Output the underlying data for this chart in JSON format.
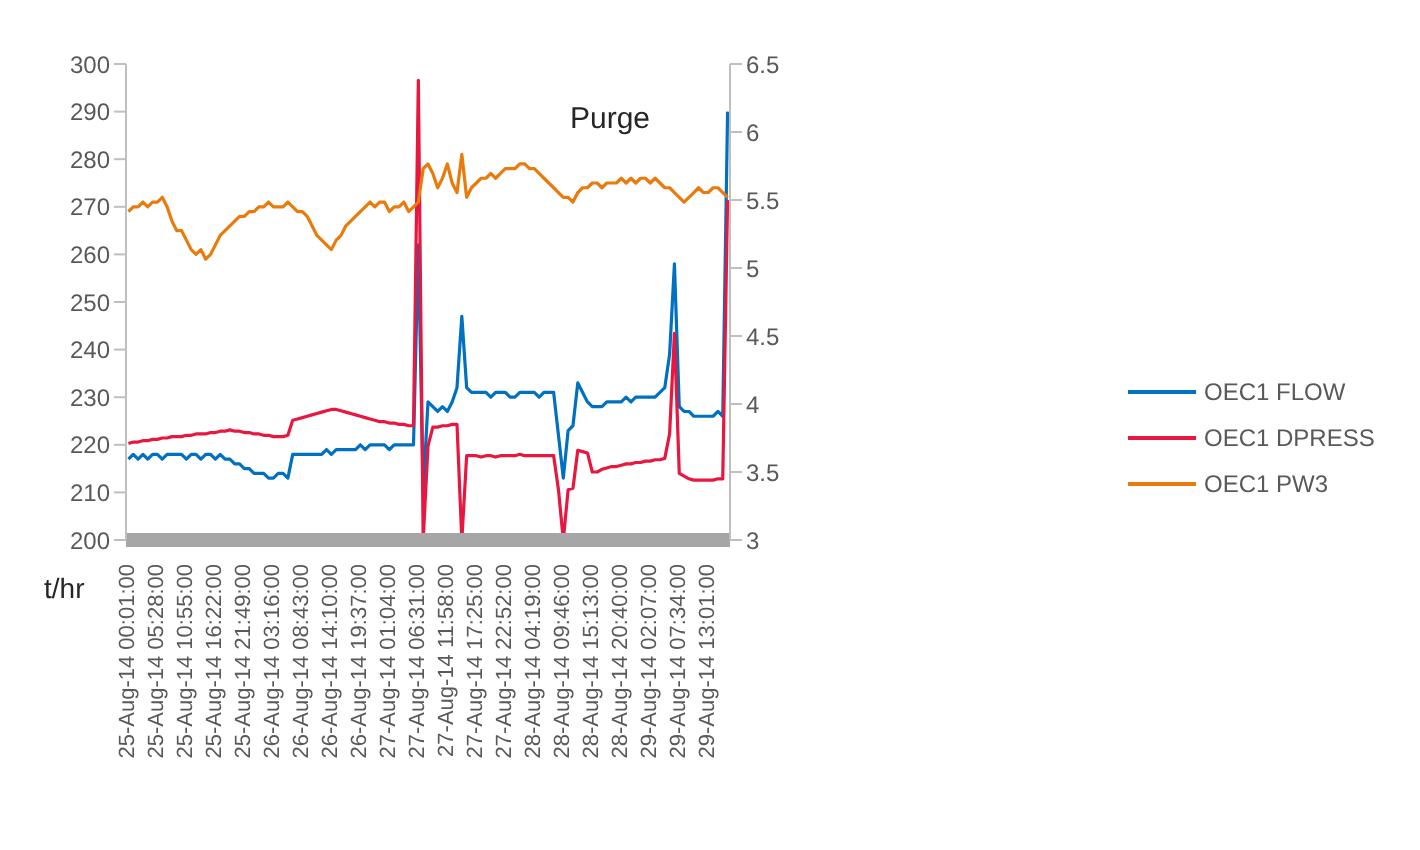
{
  "chart_data": {
    "type": "line",
    "ylabel": "t/hr",
    "annotations": [
      "Purge"
    ],
    "categories": [
      "25-Aug-14 00:01:00",
      null,
      null,
      null,
      null,
      null,
      "25-Aug-14 05:28:00",
      null,
      null,
      null,
      null,
      null,
      "25-Aug-14 10:55:00",
      null,
      null,
      null,
      null,
      null,
      "25-Aug-14 16:22:00",
      null,
      null,
      null,
      null,
      null,
      "25-Aug-14 21:49:00",
      null,
      null,
      null,
      null,
      null,
      "26-Aug-14 03:16:00",
      null,
      null,
      null,
      null,
      null,
      "26-Aug-14 08:43:00",
      null,
      null,
      null,
      null,
      null,
      "26-Aug-14 14:10:00",
      null,
      null,
      null,
      null,
      null,
      "26-Aug-14 19:37:00",
      null,
      null,
      null,
      null,
      null,
      "27-Aug-14 01:04:00",
      null,
      null,
      null,
      null,
      null,
      "27-Aug-14 06:31:00",
      null,
      null,
      null,
      null,
      null,
      "27-Aug-14 11:58:00",
      null,
      null,
      null,
      null,
      null,
      "27-Aug-14 17:25:00",
      null,
      null,
      null,
      null,
      null,
      "27-Aug-14 22:52:00",
      null,
      null,
      null,
      null,
      null,
      "28-Aug-14 04:19:00",
      null,
      null,
      null,
      null,
      null,
      "28-Aug-14 09:46:00",
      null,
      null,
      null,
      null,
      null,
      "28-Aug-14 15:13:00",
      null,
      null,
      null,
      null,
      null,
      "28-Aug-14 20:40:00",
      null,
      null,
      null,
      null,
      null,
      "29-Aug-14 02:07:00",
      null,
      null,
      null,
      null,
      null,
      "29-Aug-14 07:34:00",
      null,
      null,
      null,
      null,
      null,
      "29-Aug-14 13:01:00",
      null,
      null,
      null,
      null
    ],
    "series": [
      {
        "name": "OEC1 FLOW",
        "color": "#0070c0",
        "values": [
          217,
          218,
          217,
          218,
          217,
          218,
          218,
          217,
          218,
          218,
          218,
          218,
          217,
          218,
          218,
          217,
          218,
          218,
          217,
          218,
          217,
          217,
          216,
          216,
          215,
          215,
          214,
          214,
          214,
          213,
          213,
          214,
          214,
          213,
          218,
          218,
          218,
          218,
          218,
          218,
          218,
          219,
          218,
          219,
          219,
          219,
          219,
          219,
          220,
          219,
          220,
          220,
          220,
          220,
          219,
          220,
          220,
          220,
          220,
          220,
          262,
          210,
          229,
          228,
          227,
          228,
          227,
          229,
          232,
          247,
          232,
          231,
          231,
          231,
          231,
          230,
          231,
          231,
          231,
          230,
          230,
          231,
          231,
          231,
          231,
          230,
          231,
          231,
          231,
          222,
          213,
          223,
          224,
          233,
          231,
          229,
          228,
          228,
          228,
          229,
          229,
          229,
          229,
          230,
          229,
          230,
          230,
          230,
          230,
          230,
          231,
          232,
          239,
          258,
          228,
          227,
          227,
          226,
          226,
          226,
          226,
          226,
          227,
          226,
          290
        ]
      },
      {
        "name": "OEC1 DPRESS",
        "color": "#e8173f",
        "axis": "y2",
        "values": [
          3.71,
          3.72,
          3.72,
          3.73,
          3.73,
          3.74,
          3.74,
          3.75,
          3.75,
          3.76,
          3.76,
          3.76,
          3.77,
          3.77,
          3.78,
          3.78,
          3.78,
          3.79,
          3.79,
          3.8,
          3.8,
          3.81,
          3.8,
          3.8,
          3.79,
          3.79,
          3.78,
          3.78,
          3.77,
          3.77,
          3.76,
          3.76,
          3.76,
          3.77,
          3.88,
          3.89,
          3.9,
          3.91,
          3.92,
          3.93,
          3.94,
          3.95,
          3.96,
          3.96,
          3.95,
          3.94,
          3.93,
          3.92,
          3.91,
          3.9,
          3.89,
          3.88,
          3.87,
          3.87,
          3.86,
          3.86,
          3.85,
          3.85,
          3.84,
          3.84,
          6.38,
          3.0,
          3.69,
          3.83,
          3.83,
          3.84,
          3.84,
          3.85,
          3.85,
          3.0,
          3.62,
          3.62,
          3.62,
          3.61,
          3.62,
          3.62,
          3.61,
          3.62,
          3.62,
          3.62,
          3.62,
          3.63,
          3.62,
          3.62,
          3.62,
          3.62,
          3.62,
          3.62,
          3.62,
          3.37,
          3.0,
          3.37,
          3.38,
          3.66,
          3.65,
          3.64,
          3.5,
          3.5,
          3.52,
          3.53,
          3.54,
          3.54,
          3.55,
          3.56,
          3.56,
          3.57,
          3.57,
          3.58,
          3.58,
          3.59,
          3.59,
          3.6,
          3.78,
          4.52,
          3.49,
          3.47,
          3.45,
          3.44,
          3.44,
          3.44,
          3.44,
          3.44,
          3.45,
          3.45,
          5.5
        ]
      },
      {
        "name": "OEC1 PW3",
        "color": "#e97a0c",
        "values": [
          269,
          270,
          270,
          271,
          270,
          271,
          271,
          272,
          270,
          267,
          265,
          265,
          263,
          261,
          260,
          261,
          259,
          260,
          262,
          264,
          265,
          266,
          267,
          268,
          268,
          269,
          269,
          270,
          270,
          271,
          270,
          270,
          270,
          271,
          270,
          269,
          269,
          268,
          266,
          264,
          263,
          262,
          261,
          263,
          264,
          266,
          267,
          268,
          269,
          270,
          271,
          270,
          271,
          271,
          269,
          270,
          270,
          271,
          269,
          270,
          271,
          278,
          279,
          277,
          274,
          276,
          279,
          275,
          273,
          281,
          272,
          274,
          275,
          276,
          276,
          277,
          276,
          277,
          278,
          278,
          278,
          279,
          279,
          278,
          278,
          277,
          276,
          275,
          274,
          273,
          272,
          272,
          271,
          273,
          274,
          274,
          275,
          275,
          274,
          275,
          275,
          275,
          276,
          275,
          276,
          275,
          276,
          276,
          275,
          276,
          275,
          274,
          274,
          273,
          272,
          271,
          272,
          273,
          274,
          273,
          273,
          274,
          274,
          273,
          272
        ]
      }
    ],
    "ylim": [
      200,
      300
    ],
    "yticks": [
      200,
      210,
      220,
      230,
      240,
      250,
      260,
      270,
      280,
      290,
      300
    ],
    "y2lim": [
      3,
      6.5
    ],
    "y2ticks": [
      3,
      3.5,
      4,
      4.5,
      5,
      5.5,
      6,
      6.5
    ],
    "legend": "right"
  }
}
